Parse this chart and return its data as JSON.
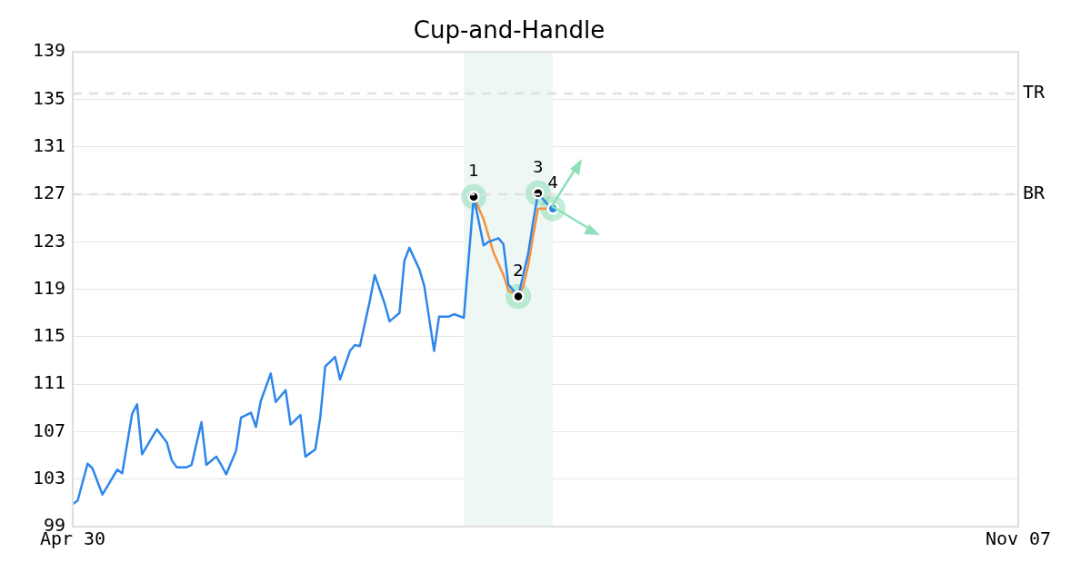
{
  "chart_data": {
    "type": "line",
    "title": "Cup-and-Handle",
    "xlim": [
      "--04-30",
      "--11-07"
    ],
    "xticks": [
      {
        "value": "--04-30",
        "label": "Apr 30"
      },
      {
        "value": "--11-07",
        "label": "Nov 07"
      }
    ],
    "ylim": [
      99,
      139
    ],
    "yticks": [
      99,
      103,
      107,
      111,
      115,
      119,
      123,
      127,
      131,
      135,
      139
    ],
    "grid": "y",
    "legend": false,
    "series": [
      {
        "color": "#2e86ea",
        "marker": "none",
        "x": [
          "--04-30",
          "--05-01",
          "--05-03",
          "--05-04",
          "--05-06",
          "--05-07",
          "--05-09",
          "--05-10",
          "--05-12",
          "--05-13",
          "--05-14",
          "--05-16",
          "--05-17",
          "--05-19",
          "--05-20",
          "--05-21",
          "--05-23",
          "--05-24",
          "--05-26",
          "--05-27",
          "--05-29",
          "--05-30",
          "--05-31",
          "--06-02",
          "--06-03",
          "--06-05",
          "--06-06",
          "--06-07",
          "--06-09",
          "--06-10",
          "--06-12",
          "--06-13",
          "--06-15",
          "--06-16",
          "--06-18",
          "--06-19",
          "--06-20",
          "--06-22",
          "--06-23",
          "--06-25",
          "--06-26",
          "--06-27",
          "--06-29",
          "--06-30",
          "--07-02",
          "--07-03",
          "--07-05",
          "--07-06",
          "--07-07",
          "--07-09",
          "--07-10",
          "--07-12",
          "--07-13",
          "--07-15",
          "--07-16",
          "--07-18",
          "--07-20",
          "--07-22",
          "--07-23",
          "--07-25",
          "--07-26",
          "--07-27",
          "--07-29",
          "--07-31",
          "--08-01",
          "--08-02",
          "--08-04"
        ],
        "values": [
          100.9,
          101.2,
          104.3,
          103.9,
          101.7,
          102.4,
          103.8,
          103.5,
          108.5,
          109.3,
          105.1,
          106.5,
          107.2,
          106.1,
          104.6,
          104.0,
          104.0,
          104.2,
          107.8,
          104.2,
          104.9,
          104.2,
          103.4,
          105.4,
          108.2,
          108.6,
          107.4,
          109.6,
          111.9,
          109.5,
          110.5,
          107.6,
          108.4,
          104.9,
          105.5,
          108.2,
          112.5,
          113.3,
          111.4,
          113.8,
          114.3,
          114.2,
          118.0,
          120.2,
          117.8,
          116.3,
          117.0,
          121.4,
          122.5,
          120.7,
          119.3,
          113.8,
          116.7,
          116.7,
          116.9,
          116.6,
          126.8,
          122.7,
          123.0,
          123.3,
          122.8,
          119.4,
          118.4,
          122.0,
          124.7,
          127.1,
          126.1
        ]
      },
      {
        "color": "#f5923e",
        "marker": "none",
        "x": [
          "--07-20",
          "--07-22",
          "--07-24",
          "--07-26",
          "--07-27",
          "--07-29",
          "--07-30",
          "--07-31",
          "--08-01",
          "--08-02",
          "--08-04"
        ],
        "values": [
          126.8,
          124.9,
          122.1,
          120.2,
          118.9,
          118.4,
          119.2,
          121.0,
          123.5,
          125.8,
          125.8
        ]
      },
      {
        "type": "scatter",
        "color": "#000000",
        "marker": "circle",
        "x": [
          "--07-20",
          "--07-29",
          "--08-02"
        ],
        "values": [
          126.8,
          118.4,
          127.1
        ]
      },
      {
        "type": "scatter",
        "color": "#2e86ea",
        "marker": "circle",
        "x": [
          "--08-05"
        ],
        "values": [
          125.8
        ]
      }
    ],
    "ref_lines": [
      {
        "axis": "y",
        "value": 135.5,
        "label": "TR",
        "color": "#e0e0e0",
        "line_style": "dashed"
      },
      {
        "axis": "y",
        "value": 127,
        "label": "BR",
        "color": "#e0e0e0",
        "line_style": "dashed"
      }
    ],
    "bands": [
      {
        "axis": "x",
        "from": "--07-18",
        "to": "--08-05",
        "color": "#eef7f3"
      }
    ],
    "annotations": [
      {
        "text": "1",
        "x": "--07-20",
        "y": 126.8
      },
      {
        "text": "2",
        "x": "--07-29",
        "y": 118.4
      },
      {
        "text": "3",
        "x": "--08-02",
        "y": 127.1
      },
      {
        "text": "4",
        "x": "--08-05",
        "y": 125.8
      }
    ]
  }
}
